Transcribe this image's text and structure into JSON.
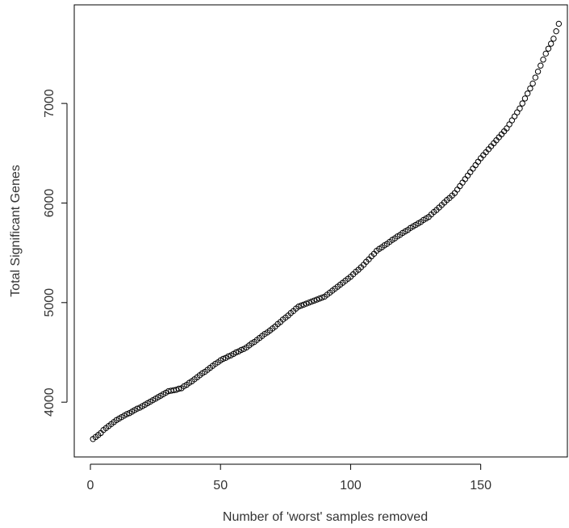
{
  "chart_data": {
    "type": "scatter",
    "x_label": "Number of 'worst' samples removed",
    "y_label": "Total Significant Genes",
    "xlim": [
      -6.2,
      183.3
    ],
    "ylim": [
      3450,
      7990
    ],
    "xticks": [
      0,
      50,
      100,
      150
    ],
    "yticks": [
      4000,
      5000,
      6000,
      7000
    ],
    "color": "#000000",
    "x": [
      1,
      2,
      3,
      4,
      5,
      6,
      7,
      8,
      9,
      10,
      11,
      12,
      13,
      14,
      15,
      16,
      17,
      18,
      19,
      20,
      21,
      22,
      23,
      24,
      25,
      26,
      27,
      28,
      29,
      30,
      31,
      32,
      33,
      34,
      35,
      36,
      37,
      38,
      39,
      40,
      41,
      42,
      43,
      44,
      45,
      46,
      47,
      48,
      49,
      50,
      51,
      52,
      53,
      54,
      55,
      56,
      57,
      58,
      59,
      60,
      61,
      62,
      63,
      64,
      65,
      66,
      67,
      68,
      69,
      70,
      71,
      72,
      73,
      74,
      75,
      76,
      77,
      78,
      79,
      80,
      81,
      82,
      83,
      84,
      85,
      86,
      87,
      88,
      89,
      90,
      91,
      92,
      93,
      94,
      95,
      96,
      97,
      98,
      99,
      100,
      101,
      102,
      103,
      104,
      105,
      106,
      107,
      108,
      109,
      110,
      111,
      112,
      113,
      114,
      115,
      116,
      117,
      118,
      119,
      120,
      121,
      122,
      123,
      124,
      125,
      126,
      127,
      128,
      129,
      130,
      131,
      132,
      133,
      134,
      135,
      136,
      137,
      138,
      139,
      140,
      141,
      142,
      143,
      144,
      145,
      146,
      147,
      148,
      149,
      150,
      151,
      152,
      153,
      154,
      155,
      156,
      157,
      158,
      159,
      160,
      161,
      162,
      163,
      164,
      165,
      166,
      167,
      168,
      169,
      170,
      171,
      172,
      173,
      174,
      175,
      176,
      177,
      178,
      179,
      180
    ],
    "values": [
      3630,
      3650,
      3670,
      3690,
      3720,
      3740,
      3760,
      3780,
      3800,
      3820,
      3835,
      3850,
      3865,
      3880,
      3890,
      3905,
      3920,
      3935,
      3945,
      3960,
      3975,
      3990,
      4005,
      4020,
      4035,
      4050,
      4065,
      4080,
      4095,
      4110,
      4115,
      4120,
      4125,
      4135,
      4140,
      4160,
      4175,
      4195,
      4210,
      4230,
      4250,
      4270,
      4290,
      4305,
      4325,
      4345,
      4365,
      4385,
      4400,
      4420,
      4435,
      4445,
      4460,
      4470,
      4485,
      4500,
      4510,
      4525,
      4535,
      4550,
      4570,
      4590,
      4605,
      4625,
      4645,
      4665,
      4685,
      4700,
      4720,
      4740,
      4760,
      4785,
      4805,
      4830,
      4850,
      4870,
      4895,
      4915,
      4940,
      4960,
      4970,
      4980,
      4990,
      5000,
      5010,
      5020,
      5030,
      5040,
      5050,
      5060,
      5080,
      5100,
      5120,
      5140,
      5160,
      5180,
      5200,
      5220,
      5240,
      5260,
      5285,
      5310,
      5330,
      5355,
      5380,
      5410,
      5435,
      5465,
      5490,
      5520,
      5540,
      5555,
      5575,
      5590,
      5610,
      5630,
      5645,
      5665,
      5680,
      5700,
      5715,
      5730,
      5750,
      5765,
      5780,
      5795,
      5810,
      5830,
      5845,
      5860,
      5885,
      5910,
      5930,
      5955,
      5980,
      6005,
      6030,
      6050,
      6075,
      6100,
      6135,
      6170,
      6205,
      6240,
      6275,
      6310,
      6345,
      6380,
      6415,
      6450,
      6480,
      6510,
      6540,
      6570,
      6600,
      6630,
      6660,
      6690,
      6720,
      6750,
      6790,
      6830,
      6870,
      6910,
      6950,
      7000,
      7050,
      7100,
      7150,
      7200,
      7260,
      7320,
      7380,
      7440,
      7500,
      7550,
      7600,
      7650,
      7725,
      7800
    ]
  }
}
